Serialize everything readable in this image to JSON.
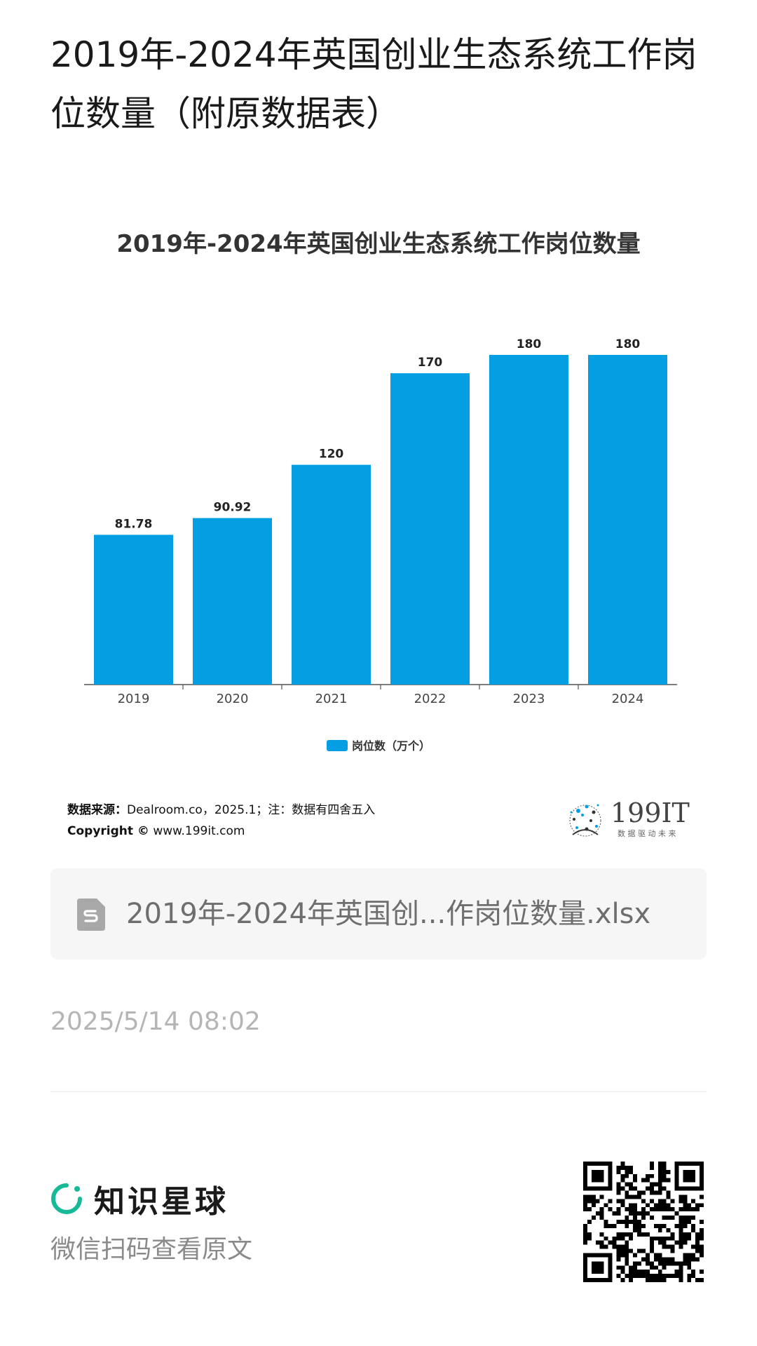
{
  "page": {
    "title": "2019年-2024年英国创业生态系统工作岗位数量（附原数据表）"
  },
  "chart_data": {
    "type": "bar",
    "title": "2019年-2024年英国创业生态系统工作岗位数量",
    "categories": [
      "2019",
      "2020",
      "2021",
      "2022",
      "2023",
      "2024"
    ],
    "series": [
      {
        "name": "岗位数（万个）",
        "values": [
          81.78,
          90.92,
          120,
          170,
          180,
          180
        ],
        "labels": [
          "81.78",
          "90.92",
          "120",
          "170",
          "180",
          "180"
        ],
        "color": "#049fe3"
      }
    ],
    "ylim": [
      0,
      180
    ],
    "grid": false,
    "legend": "bottom-center"
  },
  "source": {
    "label": "数据来源：",
    "text": "Dealroom.co，2025.1；注：数据有四舍五入",
    "copyright_label": "Copyright ©",
    "copyright_text": "www.199it.com"
  },
  "brand": {
    "logo_text": "199IT",
    "tagline": "数 据 驱 动 未 来"
  },
  "file": {
    "name": "2019年-2024年英国创...作岗位数量.xlsx",
    "icon": "spreadsheet-file-icon"
  },
  "timestamp": "2025/5/14 08:02",
  "footer": {
    "brand_name": "知识星球",
    "hint": "微信扫码查看原文",
    "brand_icon": "planet-ring-icon",
    "qr_icon": "qr-code-icon"
  },
  "colors": {
    "bar": "#049fe3",
    "brand_green": "#16b998"
  }
}
